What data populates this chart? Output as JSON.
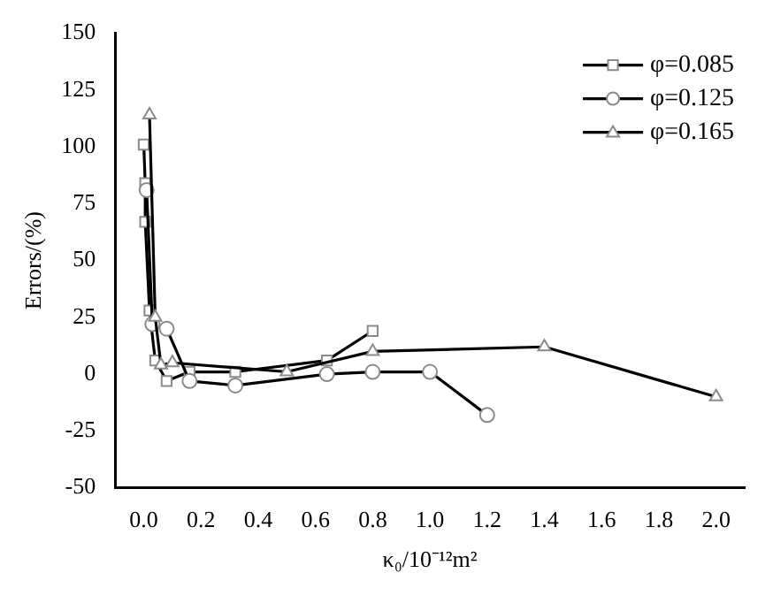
{
  "chart_data": {
    "type": "line",
    "xlabel": "κ₀/10⁻¹²m²",
    "ylabel": "Errors/(%)",
    "xlim": [
      -0.1,
      2.1
    ],
    "ylim": [
      -50,
      150
    ],
    "xticks": [
      {
        "value": 0,
        "label": "0.0"
      },
      {
        "value": 0.2,
        "label": "0.2"
      },
      {
        "value": 0.4,
        "label": "0.4"
      },
      {
        "value": 0.6,
        "label": "0.6"
      },
      {
        "value": 0.8,
        "label": "0.8"
      },
      {
        "value": 1,
        "label": "1.0"
      },
      {
        "value": 1.2,
        "label": "1.2"
      },
      {
        "value": 1.4,
        "label": "1.4"
      },
      {
        "value": 1.6,
        "label": "1.6"
      },
      {
        "value": 1.8,
        "label": "1.8"
      },
      {
        "value": 2,
        "label": "2.0"
      }
    ],
    "yticks": [
      -50,
      -25,
      0,
      25,
      50,
      75,
      100,
      125,
      150
    ],
    "grid": false,
    "legend": "top right",
    "line_style": "solid",
    "series": [
      {
        "name": "φ=0.085",
        "color": "#000000",
        "marker": "square",
        "x": [
          0,
          0.005,
          0.005,
          0.02,
          0.04,
          0.08,
          0.16,
          0.32,
          0.64,
          0.8
        ],
        "values": [
          101,
          84,
          67,
          28,
          6,
          -3,
          1,
          1,
          6,
          19
        ]
      },
      {
        "name": "φ=0.125",
        "color": "#000000",
        "marker": "circle",
        "x": [
          0.01,
          0.03,
          0.08,
          0.16,
          0.32,
          0.64,
          0.8,
          1.0,
          1.2
        ],
        "values": [
          81,
          22,
          20,
          -3,
          -5,
          0,
          1,
          1,
          -18
        ]
      },
      {
        "name": "φ=0.165",
        "color": "#000000",
        "marker": "triangle",
        "x": [
          0.02,
          0.04,
          0.06,
          0.1,
          0.5,
          0.8,
          1.4,
          2.0
        ],
        "values": [
          114,
          25,
          4,
          5,
          1,
          10,
          12,
          -10
        ]
      }
    ]
  }
}
